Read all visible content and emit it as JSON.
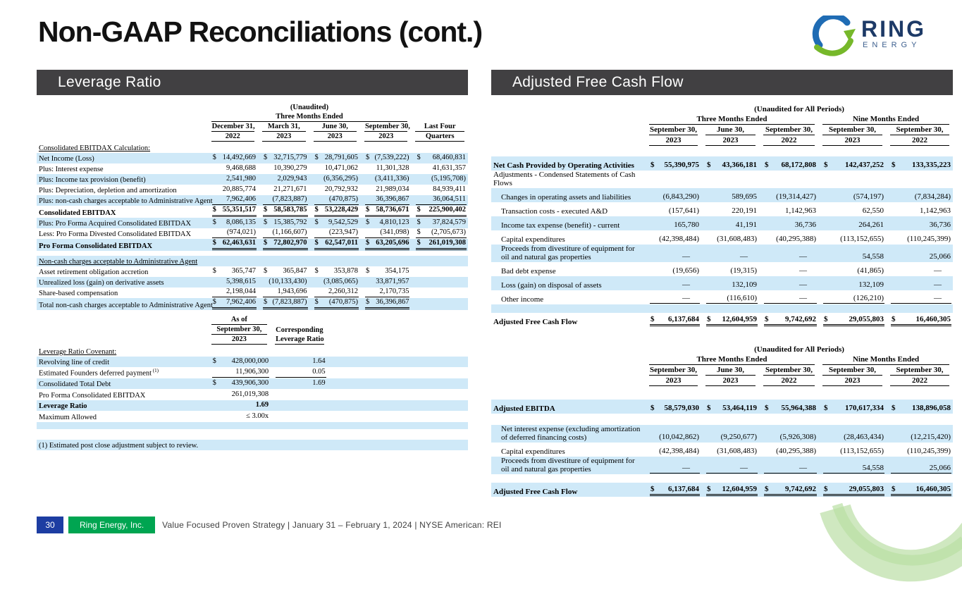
{
  "slide": {
    "title": "Non-GAAP Reconciliations (cont.)"
  },
  "logo": {
    "name": "RING",
    "sub": "ENERGY"
  },
  "panels": {
    "left": {
      "title": "Leverage Ratio"
    },
    "right": {
      "title": "Adjusted Free Cash Flow"
    }
  },
  "footer": {
    "page": "30",
    "company": "Ring Energy, Inc.",
    "tagline": "Value Focused Proven Strategy  | January 31 – February 1, 2024 |  NYSE American: REI"
  },
  "tables": {
    "leverage": {
      "header": {
        "title": "(Unaudited)",
        "groups": [
          {
            "label": "Three Months Ended",
            "cols": 4
          }
        ],
        "columns": [
          {
            "l1": "December 31,",
            "l2": "2022"
          },
          {
            "l1": "March 31,",
            "l2": "2023"
          },
          {
            "l1": "June 30,",
            "l2": "2023"
          },
          {
            "l1": "September 30,",
            "l2": "2023"
          }
        ],
        "tail": {
          "l1": "Last Four",
          "l2": "Quarters"
        }
      },
      "rows": [
        {
          "sec": true,
          "bg": "w",
          "label": "Consolidated EBITDAX Calculation:"
        },
        {
          "bg": "b",
          "label": "Net Income (Loss)",
          "cells": [
            "$|14,492,669",
            "$|32,715,779",
            "$|28,791,605",
            "$|(7,539,222)",
            "$|68,460,831"
          ]
        },
        {
          "bg": "w",
          "label": "Plus: Interest expense",
          "cells": [
            "9,468,688",
            "10,390,279",
            "10,471,062",
            "11,301,328",
            "41,631,357"
          ]
        },
        {
          "bg": "b",
          "label": "Plus: Income tax provision (benefit)",
          "cells": [
            "2,541,980",
            "2,029,943",
            "(6,356,295)",
            "(3,411,336)",
            "(5,195,708)"
          ]
        },
        {
          "bg": "w",
          "label": "Plus: Depreciation, depletion and amortization",
          "cells": [
            "20,885,774",
            "21,271,671",
            "20,792,932",
            "21,989,034",
            "84,939,411"
          ]
        },
        {
          "bg": "b",
          "u": "s",
          "label": "Plus: non-cash charges acceptable to Administrative Agent",
          "cells": [
            "7,962,406",
            "(7,823,887)",
            "(470,875)",
            "36,396,867",
            "36,064,511"
          ]
        },
        {
          "bg": "w",
          "bold": true,
          "u": "t",
          "label": "Consolidated EBITDAX",
          "cells": [
            "$|55,351,517",
            "$|58,583,785",
            "$|53,228,429",
            "$|58,736,671",
            "$|225,900,402"
          ]
        },
        {
          "bg": "b",
          "label": "Plus: Pro Forma Acquired Consolidated EBITDAX",
          "cells": [
            "$|8,086,135",
            "$|15,385,792",
            "$|9,542,529",
            "$|4,810,123",
            "$|37,824,579"
          ]
        },
        {
          "bg": "w",
          "u": "s",
          "label": "Less: Pro Forma Divested Consolidated EBITDAX",
          "cells": [
            "(974,021)",
            "(1,166,607)",
            "(223,947)",
            "(341,098)",
            "$|(2,705,673)"
          ]
        },
        {
          "bg": "b",
          "bold": true,
          "u": "d",
          "label": "Pro Forma Consolidated EBITDAX",
          "cells": [
            "$|62,463,631",
            "$|72,802,970",
            "$|62,547,011",
            "$|63,205,696",
            "$|261,019,308"
          ]
        },
        {
          "bg": "w",
          "gap": 7
        },
        {
          "sec": true,
          "bg": "b",
          "label": "Non-cash charges acceptable to Administrative Agent"
        },
        {
          "bg": "w",
          "label": "Asset retirement obligation accretion",
          "cells": [
            "$|365,747",
            "$|365,847",
            "$|353,878",
            "$|354,175",
            ""
          ]
        },
        {
          "bg": "b",
          "label": "Unrealized loss (gain) on derivative assets",
          "cells": [
            "5,398,615",
            "(10,133,430)",
            "(3,085,065)",
            "33,871,957",
            ""
          ]
        },
        {
          "bg": "w",
          "u": "s",
          "label": "Share-based compensation",
          "cells": [
            "2,198,044",
            "1,943,696",
            "2,260,312",
            "2,170,735",
            ""
          ]
        },
        {
          "bg": "b",
          "u": "d",
          "label": "Total non-cash charges acceptable to Administrative Agent",
          "cells": [
            "$|7,962,406",
            "$|(7,823,887)",
            "$|(470,875)",
            "$|36,396,867",
            ""
          ]
        }
      ]
    },
    "covenant": {
      "header": {
        "title": "",
        "groups": [
          {
            "label": "As of",
            "cols": 1
          },
          {
            "label": "",
            "cols": 1
          }
        ],
        "columns": [
          {
            "l1": "September 30,",
            "l2": "2023"
          },
          {
            "l1": "Corresponding",
            "l2": "Leverage Ratio",
            "u1": false
          }
        ]
      },
      "rows": [
        {
          "sec": true,
          "bg": "w",
          "label": "Leverage Ratio Covenant:"
        },
        {
          "bg": "b",
          "label": "Revolving line of credit",
          "cells": [
            "$|428,000,000",
            "1.64"
          ]
        },
        {
          "bg": "w",
          "u": "s",
          "label": "Estimated Founders deferred payment",
          "sup": "(1)",
          "cells": [
            "11,906,300",
            "0.05"
          ]
        },
        {
          "bg": "b",
          "label": "Consolidated Total Debt",
          "cells": [
            "$|439,906,300",
            "1.69"
          ]
        },
        {
          "bg": "w",
          "label": "Pro Forma Consolidated EBITDAX",
          "cells": [
            "261,019,308",
            ""
          ]
        },
        {
          "bg": "b",
          "bold": true,
          "label": "Leverage Ratio",
          "cells": [
            "1.69",
            ""
          ]
        },
        {
          "bg": "w",
          "label": "Maximum Allowed",
          "cells": [
            "≤ 3.00x",
            ""
          ]
        },
        {
          "bg": "b",
          "gap": 10
        },
        {
          "bg": "w",
          "gap": 15
        },
        {
          "bg": "b",
          "span": true,
          "label": "(1) Estimated post close adjustment subject to review."
        }
      ]
    },
    "afcf": {
      "header": {
        "title": "(Unaudited for All Periods)",
        "groups": [
          {
            "label": "Three Months Ended",
            "cols": 3
          },
          {
            "label": "Nine Months Ended",
            "cols": 2
          }
        ],
        "columns": [
          {
            "l1": "September 30,",
            "l2": "2023"
          },
          {
            "l1": "June 30,",
            "l2": "2023"
          },
          {
            "l1": "September 30,",
            "l2": "2022"
          },
          {
            "l1": "September 30,",
            "l2": "2023"
          },
          {
            "l1": "September 30,",
            "l2": "2022"
          }
        ]
      },
      "rows": [
        {
          "bg": "w",
          "gap": 14
        },
        {
          "bg": "b",
          "bold": true,
          "label": "Net Cash Provided by Operating Activities",
          "cells": [
            "$|55,390,975",
            "$|43,366,181",
            "$|68,172,808",
            "$|142,437,252",
            "$|133,335,223"
          ]
        },
        {
          "bg": "w",
          "label": "Adjustments - Condensed Statements of Cash Flows",
          "cells": [
            "",
            "",
            "",
            "",
            ""
          ]
        },
        {
          "bg": "b",
          "ind": 1,
          "label": "Changes in operating assets and liabilities",
          "cells": [
            "(6,843,290)",
            "589,695",
            "(19,314,427)",
            "(574,197)",
            "(7,834,284)"
          ]
        },
        {
          "bg": "w",
          "ind": 1,
          "label": "Transaction costs - executed A&D",
          "cells": [
            "(157,641)",
            "220,191",
            "1,142,963",
            "62,550",
            "1,142,963"
          ]
        },
        {
          "bg": "b",
          "ind": 1,
          "label": "Income tax expense (benefit) - current",
          "cells": [
            "165,780",
            "41,191",
            "36,736",
            "264,261",
            "36,736"
          ]
        },
        {
          "bg": "w",
          "ind": 1,
          "label": "Capital expenditures",
          "cells": [
            "(42,398,484)",
            "(31,608,483)",
            "(40,295,388)",
            "(113,152,655)",
            "(110,245,399)"
          ]
        },
        {
          "bg": "b",
          "ind": 1,
          "label": "Proceeds from divestiture of equipment for oil and natural gas properties",
          "cells": [
            "—",
            "—",
            "—",
            "54,558",
            "25,066"
          ]
        },
        {
          "bg": "w",
          "ind": 1,
          "label": "Bad debt expense",
          "cells": [
            "(19,656)",
            "(19,315)",
            "—",
            "(41,865)",
            "—"
          ]
        },
        {
          "bg": "b",
          "ind": 1,
          "label": "Loss (gain) on disposal of assets",
          "cells": [
            "—",
            "132,109",
            "—",
            "132,109",
            "—"
          ]
        },
        {
          "bg": "w",
          "ind": 1,
          "u": "s",
          "label": "Other income",
          "cells": [
            "—",
            "(116,610)",
            "—",
            "(126,210)",
            "—"
          ]
        },
        {
          "bg": "b",
          "gap": 12
        },
        {
          "bg": "w",
          "bold": true,
          "u": "d",
          "label": "Adjusted Free Cash Flow",
          "cells": [
            "$|6,137,684",
            "$|12,604,959",
            "$|9,742,692",
            "$|29,055,803",
            "$|16,460,305"
          ]
        }
      ]
    },
    "ebitda": {
      "header": {
        "title": "(Unaudited for All Periods)",
        "groups": [
          {
            "label": "Three Months Ended",
            "cols": 3
          },
          {
            "label": "Nine Months Ended",
            "cols": 2
          }
        ],
        "columns": [
          {
            "l1": "September 30,",
            "l2": "2023"
          },
          {
            "l1": "June 30,",
            "l2": "2023"
          },
          {
            "l1": "September 30,",
            "l2": "2022"
          },
          {
            "l1": "September 30,",
            "l2": "2023"
          },
          {
            "l1": "September 30,",
            "l2": "2022"
          }
        ]
      },
      "rows": [
        {
          "bg": "w",
          "gap": 18
        },
        {
          "bg": "b",
          "bold": true,
          "label": "Adjusted EBITDA",
          "cells": [
            "$|58,579,030",
            "$|53,464,119",
            "$|55,964,388",
            "$|170,617,334",
            "$|138,896,058"
          ]
        },
        {
          "bg": "w",
          "gap": 16
        },
        {
          "bg": "b",
          "ind": 1,
          "label": "Net interest expense (excluding amortization of deferred financing costs)",
          "cells": [
            "(10,042,862)",
            "(9,250,677)",
            "(5,926,308)",
            "(28,463,434)",
            "(12,215,420)"
          ]
        },
        {
          "bg": "w",
          "ind": 1,
          "label": "Capital expenditures",
          "cells": [
            "(42,398,484)",
            "(31,608,483)",
            "(40,295,388)",
            "(113,152,655)",
            "(110,245,399)"
          ]
        },
        {
          "bg": "b",
          "ind": 1,
          "u": "s",
          "label": "Proceeds from divestiture of equipment for oil and natural gas properties",
          "cells": [
            "—",
            "—",
            "—",
            "54,558",
            "25,066"
          ]
        },
        {
          "bg": "w",
          "gap": 12
        },
        {
          "bg": "b",
          "bold": true,
          "u": "d",
          "label": "Adjusted Free Cash Flow",
          "cells": [
            "$|6,137,684",
            "$|12,604,959",
            "$|9,742,692",
            "$|29,055,803",
            "$|16,460,305"
          ]
        }
      ]
    }
  }
}
